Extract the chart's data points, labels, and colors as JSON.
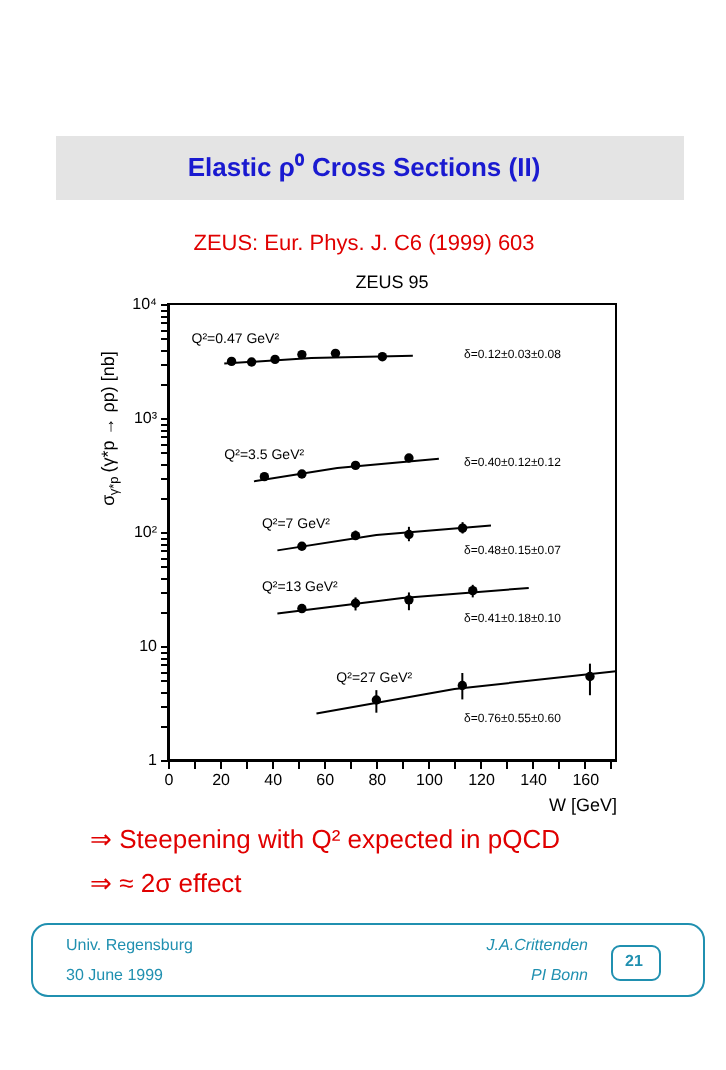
{
  "chart_data": {
    "type": "scatter",
    "title": "Elastic ρ⁰ Cross Sections (II)",
    "subtitle": "ZEUS: Eur. Phys. J. C6 (1999) 603",
    "annotations": [
      "ZEUS 95",
      "⇒ Steepening with Q² expected in pQCD",
      "⇒ ≈ 2σ effect",
      "Univ. Regensburg",
      "30 June 1999",
      "J.A.Crittenden",
      "PI Bonn",
      "21",
      "δ=0.12±0.03±0.08",
      "δ=0.40±0.12±0.12",
      "δ=0.48±0.15±0.07",
      "δ=0.41±0.18±0.10",
      "δ=0.76±0.55±0.60"
    ],
    "xlabel": "W [GeV]",
    "ylabel": "σ$_{γ*p}$(γ*p → ρp) [nb]",
    "series": [
      {
        "name": "Q²=0.47 GeV²",
        "color": "#000000",
        "x": [
          24.4,
          32.1,
          41.1,
          51.4,
          64.3,
          82.3
        ],
        "values": [
          3140,
          3100,
          3270,
          3600,
          3690,
          3450
        ]
      },
      {
        "color": "#000000",
        "type": "line",
        "marker": "none",
        "x": [
          21.6,
          55,
          94
        ],
        "values": [
          3000,
          3360,
          3520
        ]
      },
      {
        "name": "Q²=3.5 GeV²",
        "color": "#000000",
        "x": [
          37,
          51.4,
          72,
          92.5
        ],
        "values": [
          306,
          323,
          384,
          446
        ]
      },
      {
        "color": "#000000",
        "type": "line",
        "marker": "none",
        "x": [
          33,
          65,
          104
        ],
        "values": [
          278,
          364,
          440
        ]
      },
      {
        "name": "Q²=7 GeV²",
        "color": "#000000",
        "x": [
          51.4,
          72,
          92.5,
          113.1
        ],
        "values": [
          75,
          93,
          95,
          108
        ],
        "errors": [
          null,
          [
            85,
            103
          ],
          [
            83,
            111
          ],
          [
            97,
            122
          ]
        ]
      },
      {
        "color": "#000000",
        "type": "line",
        "marker": "none",
        "x": [
          42,
          80,
          124
        ],
        "values": [
          69,
          94,
          114
        ]
      },
      {
        "name": "Q²=13 GeV²",
        "color": "#000000",
        "x": [
          51.4,
          72,
          92.5,
          117
        ],
        "values": [
          21.3,
          23.7,
          25.4,
          30.6
        ],
        "errors": [
          null,
          [
            20.5,
            26.7
          ],
          [
            20.6,
            29.5
          ],
          [
            26.7,
            34.4
          ]
        ]
      },
      {
        "color": "#000000",
        "type": "line",
        "marker": "none",
        "x": [
          42,
          90,
          138.5
        ],
        "values": [
          19.3,
          26.4,
          32.3
        ]
      },
      {
        "name": "Q²=27 GeV²",
        "color": "#000000",
        "x": [
          80,
          113,
          162
        ],
        "values": [
          3.36,
          4.5,
          5.4
        ],
        "errors": [
          [
            2.6,
            4.1
          ],
          [
            3.4,
            5.8
          ],
          [
            3.7,
            7.0
          ]
        ]
      },
      {
        "color": "#000000",
        "type": "line",
        "marker": "none",
        "x": [
          57,
          110,
          172
        ],
        "values": [
          2.56,
          4.2,
          6.0
        ]
      }
    ],
    "xlim": [
      0,
      172
    ],
    "xticks": [
      0,
      {
        "value": 10,
        "label": null
      },
      20,
      {
        "value": 30,
        "label": null
      },
      40,
      {
        "value": 50,
        "label": null
      },
      60,
      {
        "value": 70,
        "label": null
      },
      80,
      {
        "value": 90,
        "label": null
      },
      100,
      {
        "value": 110,
        "label": null
      },
      120,
      {
        "value": 130,
        "label": null
      },
      140,
      {
        "value": 150,
        "label": null
      },
      160,
      {
        "value": 170,
        "label": null
      }
    ],
    "ylim": [
      1,
      10000
    ],
    "log": true,
    "yticks": [
      1,
      {
        "value": 2,
        "label": null
      },
      {
        "value": 3,
        "label": null
      },
      {
        "value": 4,
        "label": null
      },
      {
        "value": 5,
        "label": null
      },
      {
        "value": 6,
        "label": null
      },
      {
        "value": 7,
        "label": null
      },
      {
        "value": 8,
        "label": null
      },
      {
        "value": 9,
        "label": null
      },
      10,
      {
        "value": 20,
        "label": null
      },
      {
        "value": 30,
        "label": null
      },
      {
        "value": 40,
        "label": null
      },
      {
        "value": 50,
        "label": null
      },
      {
        "value": 60,
        "label": null
      },
      {
        "value": 70,
        "label": null
      },
      {
        "value": 80,
        "label": null
      },
      {
        "value": 90,
        "label": null
      },
      {
        "value": 100,
        "label": "10²"
      },
      {
        "value": 200,
        "label": null
      },
      {
        "value": 300,
        "label": null
      },
      {
        "value": 400,
        "label": null
      },
      {
        "value": 500,
        "label": null
      },
      {
        "value": 600,
        "label": null
      },
      {
        "value": 700,
        "label": null
      },
      {
        "value": 800,
        "label": null
      },
      {
        "value": 900,
        "label": null
      },
      {
        "value": 1000,
        "label": "10³"
      },
      {
        "value": 2000,
        "label": null
      },
      {
        "value": 3000,
        "label": null
      },
      {
        "value": 4000,
        "label": null
      },
      {
        "value": 5000,
        "label": null
      },
      {
        "value": 6000,
        "label": null
      },
      {
        "value": 7000,
        "label": null
      },
      {
        "value": 8000,
        "label": null
      },
      {
        "value": 9000,
        "label": null
      },
      {
        "value": 10000,
        "label": "10⁴"
      }
    ],
    "marker": "circle",
    "grid": false
  }
}
